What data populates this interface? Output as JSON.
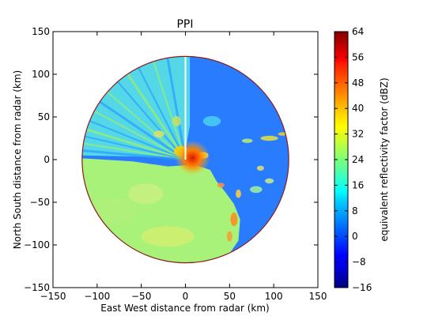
{
  "chart_data": {
    "type": "heatmap",
    "title": "PPI",
    "xlabel": "East West distance from radar (km)",
    "ylabel": "North South distance from radar (km)",
    "xlim": [
      -150,
      150
    ],
    "ylim": [
      -150,
      150
    ],
    "xticks": [
      -150,
      -100,
      -50,
      0,
      50,
      100,
      150
    ],
    "yticks": [
      -150,
      -100,
      -50,
      0,
      50,
      100,
      150
    ],
    "xtick_labels": [
      "−150",
      "−100",
      "−50",
      "0",
      "50",
      "100",
      "150"
    ],
    "ytick_labels": [
      "−150",
      "−100",
      "−50",
      "0",
      "50",
      "100",
      "150"
    ],
    "radar_range_km": 117,
    "grid": false,
    "colorbar": {
      "label": "equivalent reflectivity factor (dBZ)",
      "vmin": -16,
      "vmax": 64,
      "ticks": [
        -16,
        -8,
        0,
        8,
        16,
        24,
        32,
        40,
        48,
        56,
        64
      ],
      "tick_labels": [
        "−16",
        "−8",
        "0",
        "8",
        "16",
        "24",
        "32",
        "40",
        "48",
        "56",
        "64"
      ],
      "colormap": "jet"
    },
    "colors": {
      "range_ring": "#8b1a1a",
      "axes": "#000000"
    }
  }
}
